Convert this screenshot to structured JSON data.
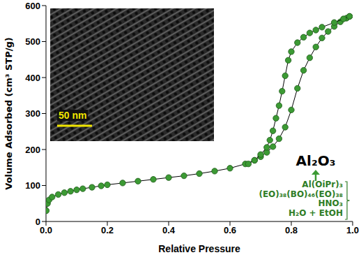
{
  "chart_data": {
    "type": "scatter",
    "x_label": "Relative Pressure",
    "y_label": "Volume Adsorbed (cm³ STP/g)",
    "xlim": [
      0,
      1
    ],
    "xticks": [
      {
        "value": 0,
        "label": "0.0"
      },
      0.2,
      0.4,
      0.6,
      0.8,
      {
        "value": 1,
        "label": "1.0"
      }
    ],
    "ylim": [
      0,
      600
    ],
    "yticks": [
      0,
      100,
      200,
      300,
      400,
      500,
      600
    ],
    "grid": false,
    "marker": "circle",
    "line_style": "solid",
    "series": [
      {
        "color": "#3c9a34",
        "x": [
          0.001,
          0.005,
          0.01,
          0.02,
          0.04,
          0.06,
          0.08,
          0.1,
          0.12,
          0.15,
          0.18,
          0.2,
          0.25,
          0.3,
          0.35,
          0.4,
          0.45,
          0.5,
          0.55,
          0.6,
          0.65,
          0.68,
          0.7,
          0.72,
          0.74,
          0.76,
          0.78,
          0.8,
          0.82,
          0.84,
          0.86,
          0.88,
          0.9,
          0.92,
          0.94,
          0.96,
          0.98,
          0.99
        ],
        "values": [
          30,
          50,
          60,
          68,
          75,
          80,
          84,
          88,
          91,
          95,
          99,
          102,
          107,
          112,
          117,
          122,
          127,
          133,
          140,
          148,
          160,
          170,
          180,
          192,
          208,
          230,
          262,
          310,
          370,
          420,
          455,
          485,
          510,
          528,
          542,
          555,
          565,
          570
        ]
      },
      {
        "color": "#3c9a34",
        "x": [
          0.99,
          0.97,
          0.94,
          0.9,
          0.88,
          0.86,
          0.84,
          0.82,
          0.8,
          0.79,
          0.78,
          0.77,
          0.76,
          0.75,
          0.74,
          0.73,
          0.72,
          0.7,
          0.68,
          0.66
        ],
        "values": [
          570,
          563,
          553,
          540,
          532,
          524,
          512,
          497,
          472,
          448,
          405,
          362,
          322,
          287,
          252,
          226,
          206,
          186,
          170,
          160
        ]
      }
    ],
    "annotations": {
      "inset_scale_bar": "50 nm",
      "product": "Al₂O₃",
      "reagents": [
        "Al(OiPr)₃",
        "(EO)₃₈(BO)₄₆(EO)₃₈",
        "HNO₃",
        "H₂O + EtOH"
      ]
    }
  }
}
